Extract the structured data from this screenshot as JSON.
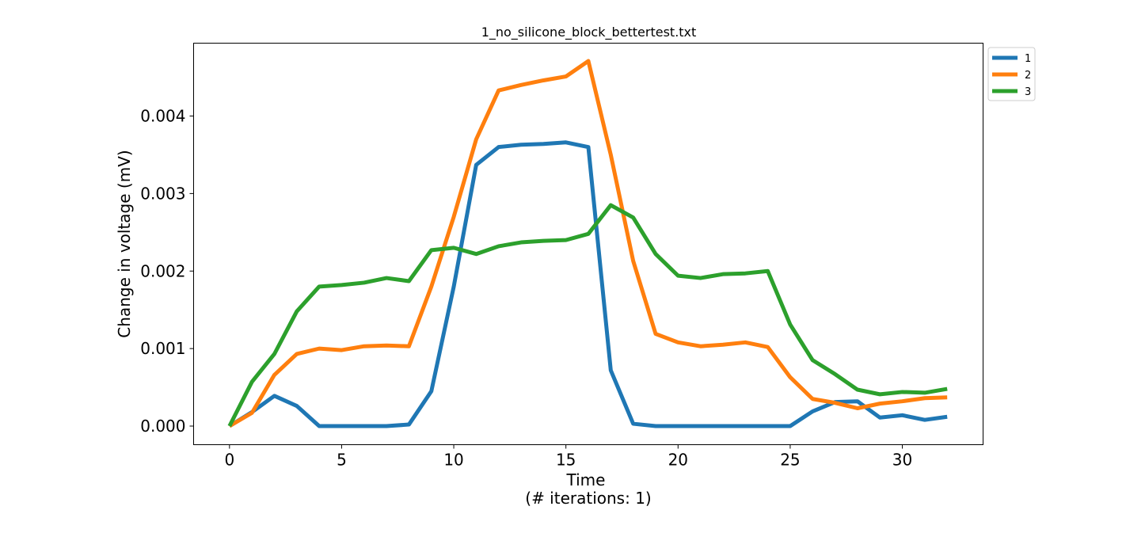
{
  "chart_data": {
    "type": "line",
    "title": "1_no_silicone_block_bettertest.txt",
    "xlabel": "Time",
    "xlabel_sub": "(# iterations: 1)",
    "ylabel": "Change in voltage (mV)",
    "xlim": [
      -1.6,
      33.6
    ],
    "ylim": [
      -0.00024,
      0.00494
    ],
    "xticks": [
      0,
      5,
      10,
      15,
      20,
      25,
      30
    ],
    "xtick_labels": [
      "0",
      "5",
      "10",
      "15",
      "20",
      "25",
      "30"
    ],
    "yticks": [
      0,
      0.001,
      0.002,
      0.003,
      0.004
    ],
    "ytick_labels": [
      "0.000",
      "0.001",
      "0.002",
      "0.003",
      "0.004"
    ],
    "grid": false,
    "legend_position": "outside-top-right",
    "x": [
      0,
      1,
      2,
      3,
      4,
      5,
      6,
      7,
      8,
      9,
      10,
      11,
      12,
      13,
      14,
      15,
      16,
      17,
      18,
      19,
      20,
      21,
      22,
      23,
      24,
      25,
      26,
      27,
      28,
      29,
      30,
      31,
      32
    ],
    "series": [
      {
        "name": "1",
        "color": "#1f77b4",
        "values": [
          0,
          0.00018,
          0.00039,
          0.00026,
          0,
          0,
          0,
          0,
          2e-05,
          0.00045,
          0.0018,
          0.00337,
          0.0036,
          0.00363,
          0.00364,
          0.00366,
          0.0036,
          0.00072,
          3e-05,
          0,
          0,
          0,
          0,
          0,
          0,
          0,
          0.00019,
          0.00031,
          0.00032,
          0.00011,
          0.00014,
          8e-05,
          0.00012
        ]
      },
      {
        "name": "2",
        "color": "#ff7f0e",
        "values": [
          0,
          0.00017,
          0.00066,
          0.00093,
          0.001,
          0.00098,
          0.00103,
          0.00104,
          0.00103,
          0.0018,
          0.0027,
          0.0037,
          0.00433,
          0.0044,
          0.00446,
          0.00451,
          0.00471,
          0.0035,
          0.00213,
          0.00119,
          0.00108,
          0.00103,
          0.00105,
          0.00108,
          0.00102,
          0.00063,
          0.00035,
          0.0003,
          0.00023,
          0.00029,
          0.00032,
          0.00036,
          0.00037
        ]
      },
      {
        "name": "3",
        "color": "#2ca02c",
        "values": [
          0,
          0.00057,
          0.00093,
          0.00148,
          0.0018,
          0.00182,
          0.00185,
          0.00191,
          0.00187,
          0.00227,
          0.0023,
          0.00222,
          0.00232,
          0.00237,
          0.00239,
          0.0024,
          0.00248,
          0.00285,
          0.00269,
          0.00222,
          0.00194,
          0.00191,
          0.00196,
          0.00197,
          0.002,
          0.00131,
          0.00085,
          0.00067,
          0.00047,
          0.00041,
          0.00044,
          0.00043,
          0.00048
        ]
      }
    ]
  }
}
